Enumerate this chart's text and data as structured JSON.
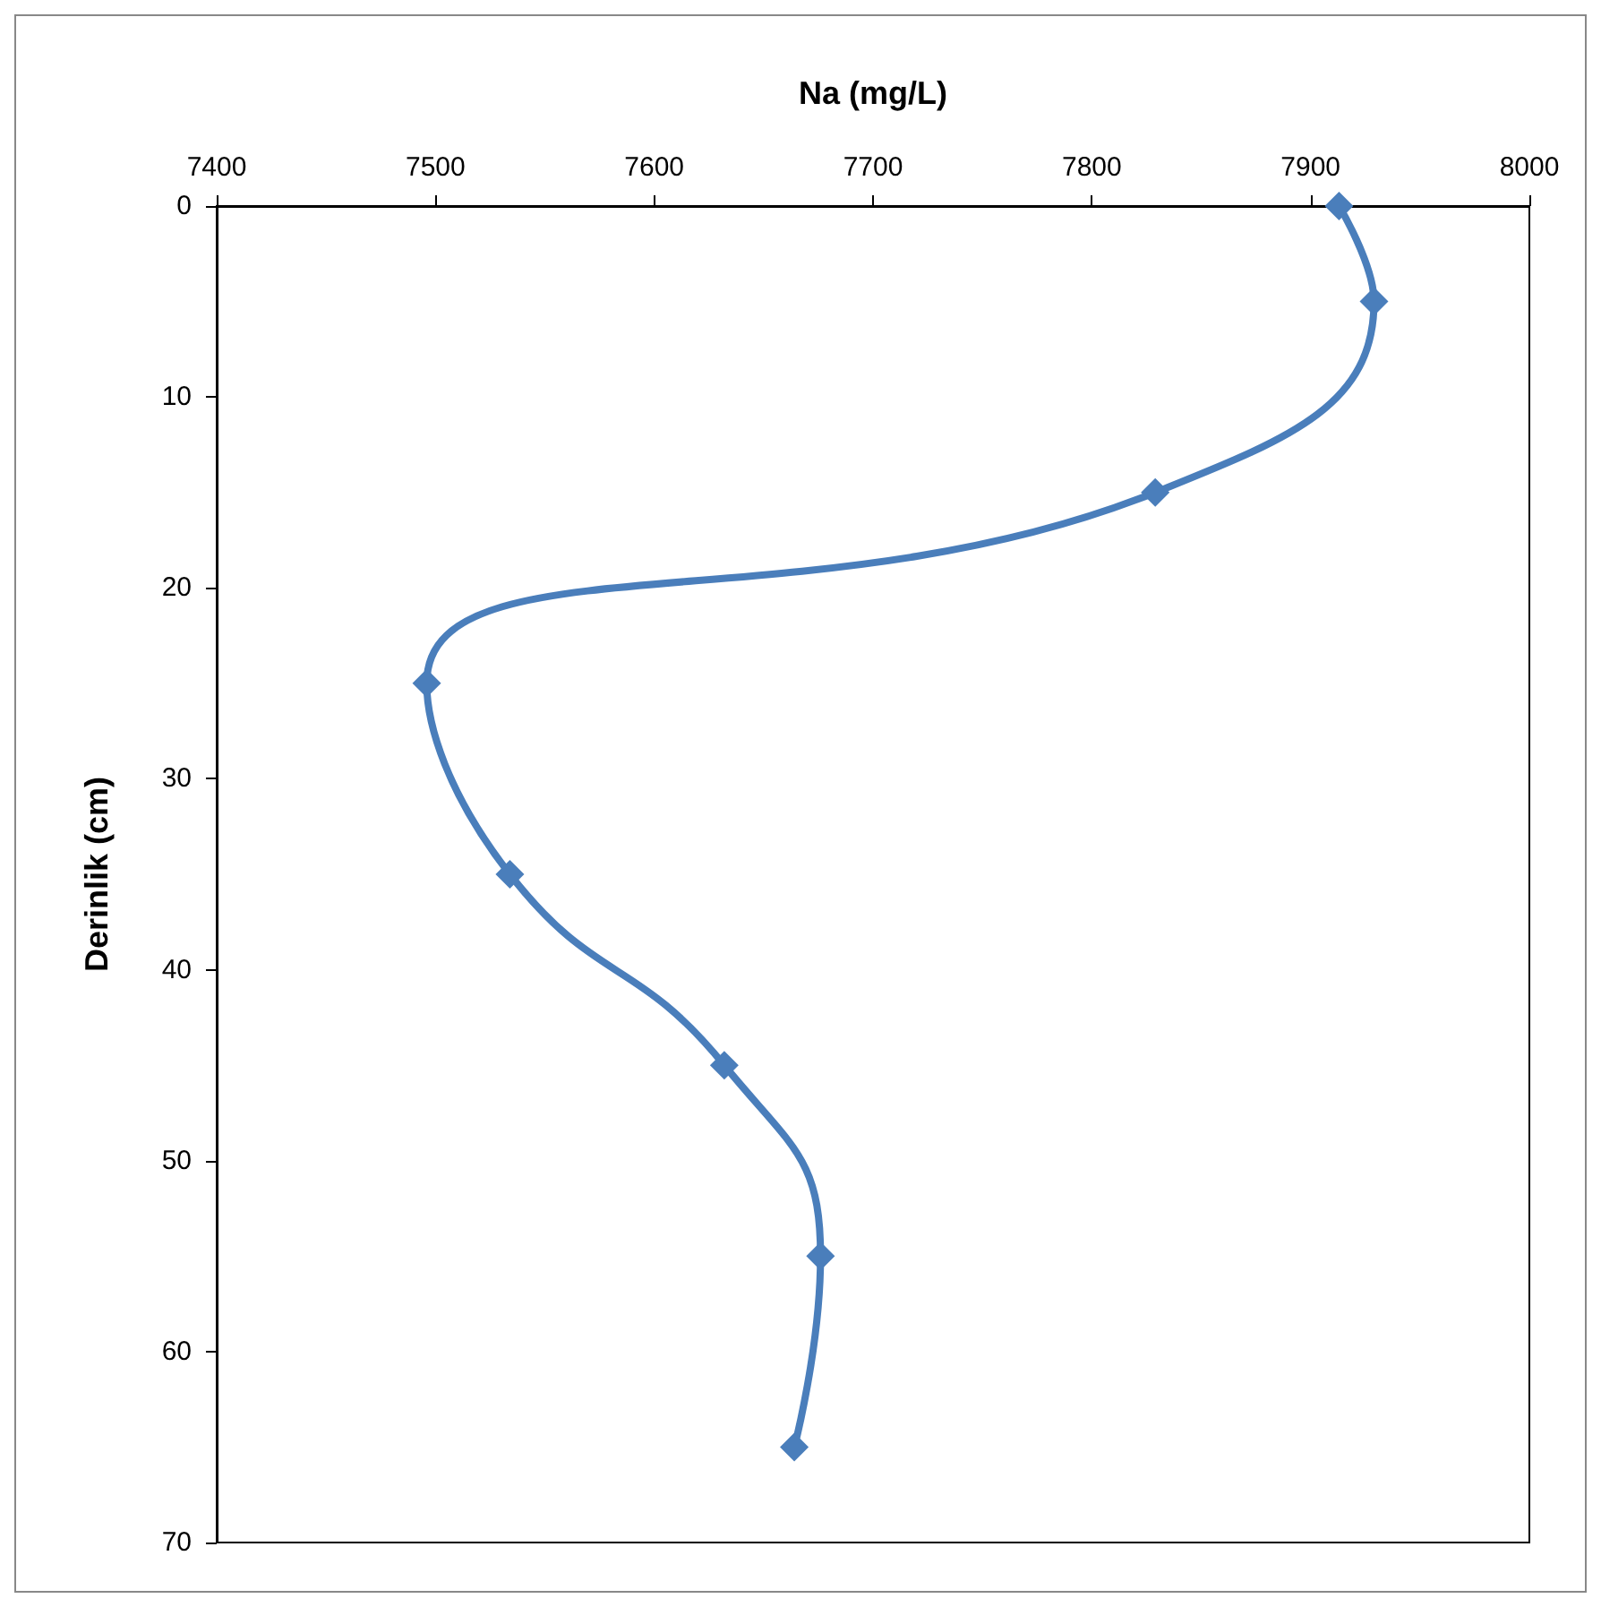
{
  "chart_data": {
    "type": "line",
    "xlabel": "Na (mg/L)",
    "ylabel": "Derinlik (cm)",
    "x": [
      7913,
      7929,
      7829,
      7496,
      7534,
      7632,
      7676,
      7664
    ],
    "series": [
      {
        "color": "#4a7ebb",
        "values": [
          0,
          5,
          15,
          25,
          35,
          45,
          55,
          65
        ]
      }
    ],
    "xlim": [
      7400,
      8000
    ],
    "xticks": [
      7400,
      7500,
      7600,
      7700,
      7800,
      7900,
      8000
    ],
    "ylim": [
      70,
      0
    ],
    "yticks": [
      0,
      10,
      20,
      30,
      40,
      50,
      60,
      70
    ],
    "grid": false,
    "marker": "diamond",
    "line_style": "solid"
  }
}
